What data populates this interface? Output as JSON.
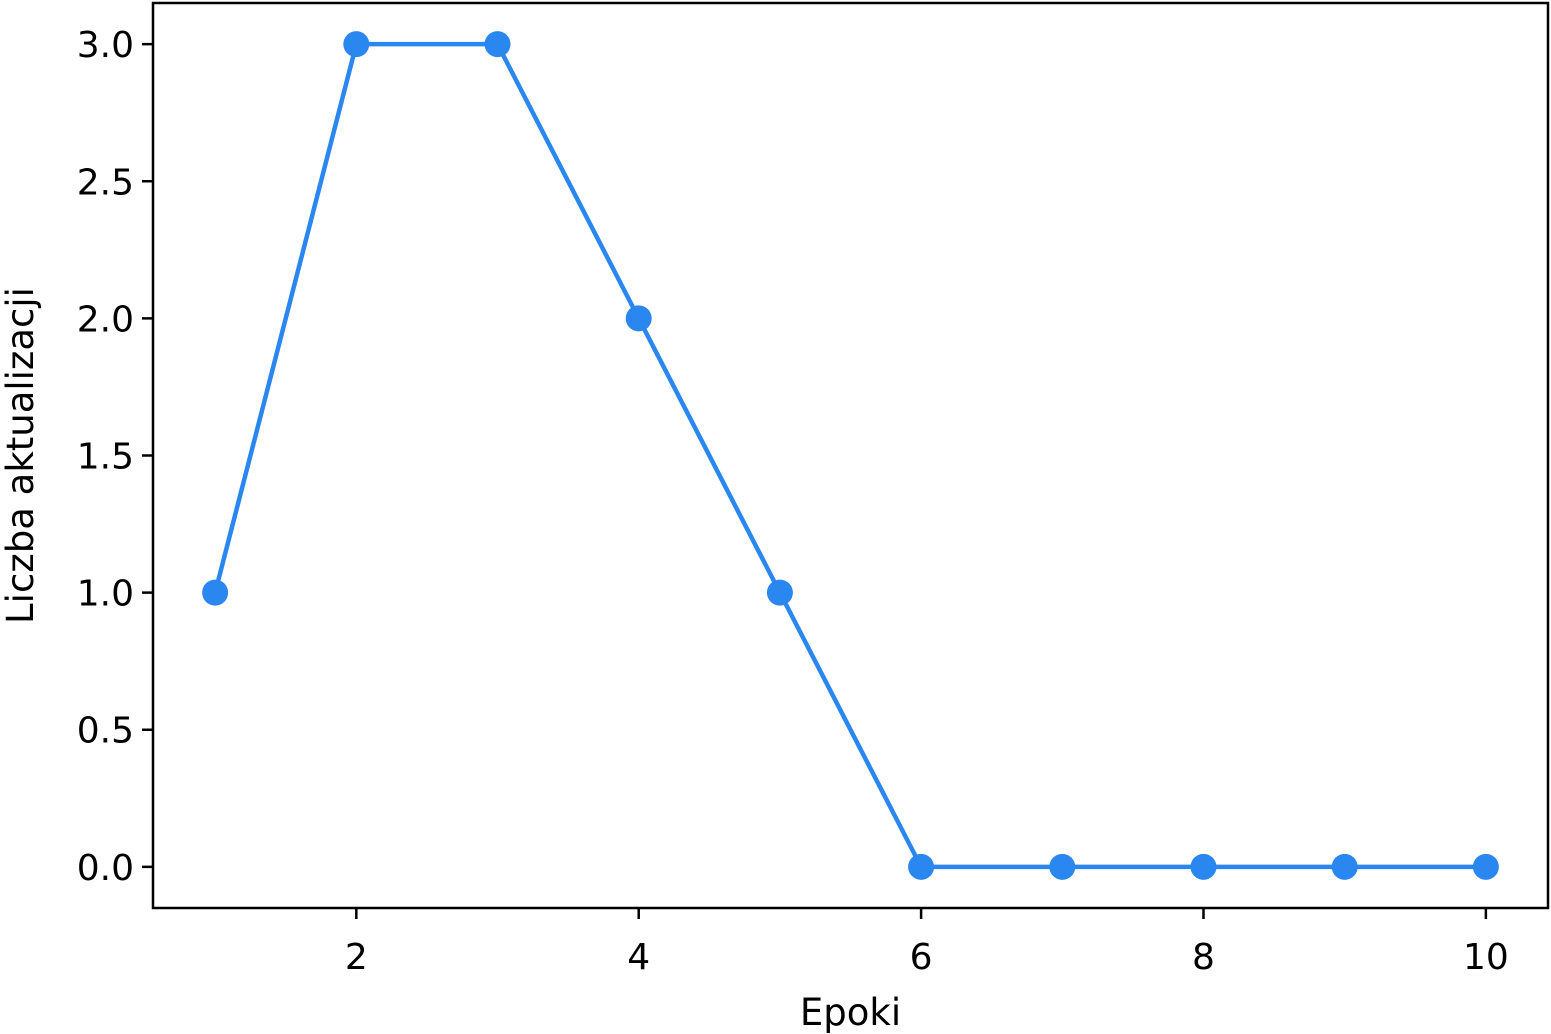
{
  "chart_data": {
    "type": "line",
    "title": "",
    "xlabel": "Epoki",
    "ylabel": "Liczba aktualizacji",
    "x": [
      1,
      2,
      3,
      4,
      5,
      6,
      7,
      8,
      9,
      10
    ],
    "series": [
      {
        "values": [
          1,
          3,
          3,
          2,
          1,
          0,
          0,
          0,
          0,
          0
        ],
        "color": "#2a87f0",
        "marker": "circle"
      }
    ],
    "xlim": [
      0.56,
      10.44
    ],
    "ylim": [
      -0.15,
      3.15
    ],
    "xticks": [
      2,
      4,
      6,
      8,
      10
    ],
    "xtick_labels": [
      "2",
      "4",
      "6",
      "8",
      "10"
    ],
    "yticks": [
      0,
      0.5,
      1,
      1.5,
      2,
      2.5,
      3
    ],
    "ytick_labels": [
      "0.0",
      "0.5",
      "1.0",
      "1.5",
      "2.0",
      "2.5",
      "3.0"
    ],
    "grid": false,
    "legend": "none"
  }
}
